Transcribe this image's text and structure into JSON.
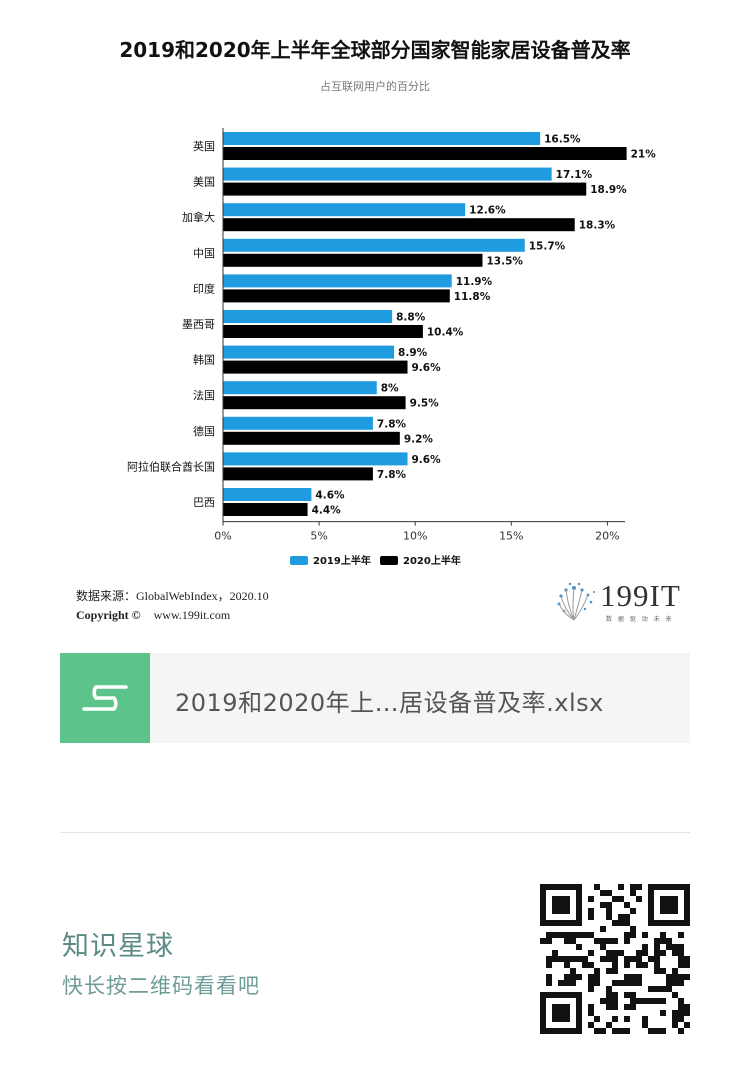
{
  "chart_data": {
    "type": "bar",
    "orientation": "horizontal",
    "title": "2019和2020年上半年全球部分国家智能家居设备普及率",
    "subtitle": "占互联网用户的百分比",
    "categories": [
      "英国",
      "美国",
      "加拿大",
      "中国",
      "印度",
      "墨西哥",
      "韩国",
      "法国",
      "德国",
      "阿拉伯联合酋长国",
      "巴西"
    ],
    "series": [
      {
        "name": "2019上半年",
        "color": "#1f9be0",
        "values": [
          16.5,
          17.1,
          12.6,
          15.7,
          11.9,
          8.8,
          8.9,
          8,
          7.8,
          9.6,
          4.6
        ],
        "labels": [
          "16.5%",
          "17.1%",
          "12.6%",
          "15.7%",
          "11.9%",
          "8.8%",
          "8.9%",
          "8%",
          "7.8%",
          "9.6%",
          "4.6%"
        ]
      },
      {
        "name": "2020上半年",
        "color": "#000000",
        "values": [
          21,
          18.9,
          18.3,
          13.5,
          11.8,
          10.4,
          9.6,
          9.5,
          9.2,
          7.8,
          4.4
        ],
        "labels": [
          "21%",
          "18.9%",
          "18.3%",
          "13.5%",
          "11.8%",
          "10.4%",
          "9.6%",
          "9.5%",
          "9.2%",
          "7.8%",
          "4.4%"
        ]
      }
    ],
    "x_ticks": [
      "0%",
      "5%",
      "10%",
      "15%",
      "20%"
    ],
    "xlim": [
      0,
      21
    ],
    "grid": false,
    "legend_position": "bottom"
  },
  "source": {
    "line1": "数据来源：GlobalWebIndex，2020.10",
    "line2_label": "Copyright ©",
    "line2_url": "www.199it.com"
  },
  "logo": {
    "text": "199IT",
    "tagline": "数 据 驱 动 未 来"
  },
  "file_card": {
    "file_name": "2019和2020年上…居设备普及率.xlsx",
    "icon": "spreadsheet-s-icon",
    "icon_color": "#5cc48a"
  },
  "planet": {
    "title": "知识星球",
    "subtitle": "快长按二维码看看吧"
  },
  "qr": {
    "icon": "qr-code-icon"
  }
}
